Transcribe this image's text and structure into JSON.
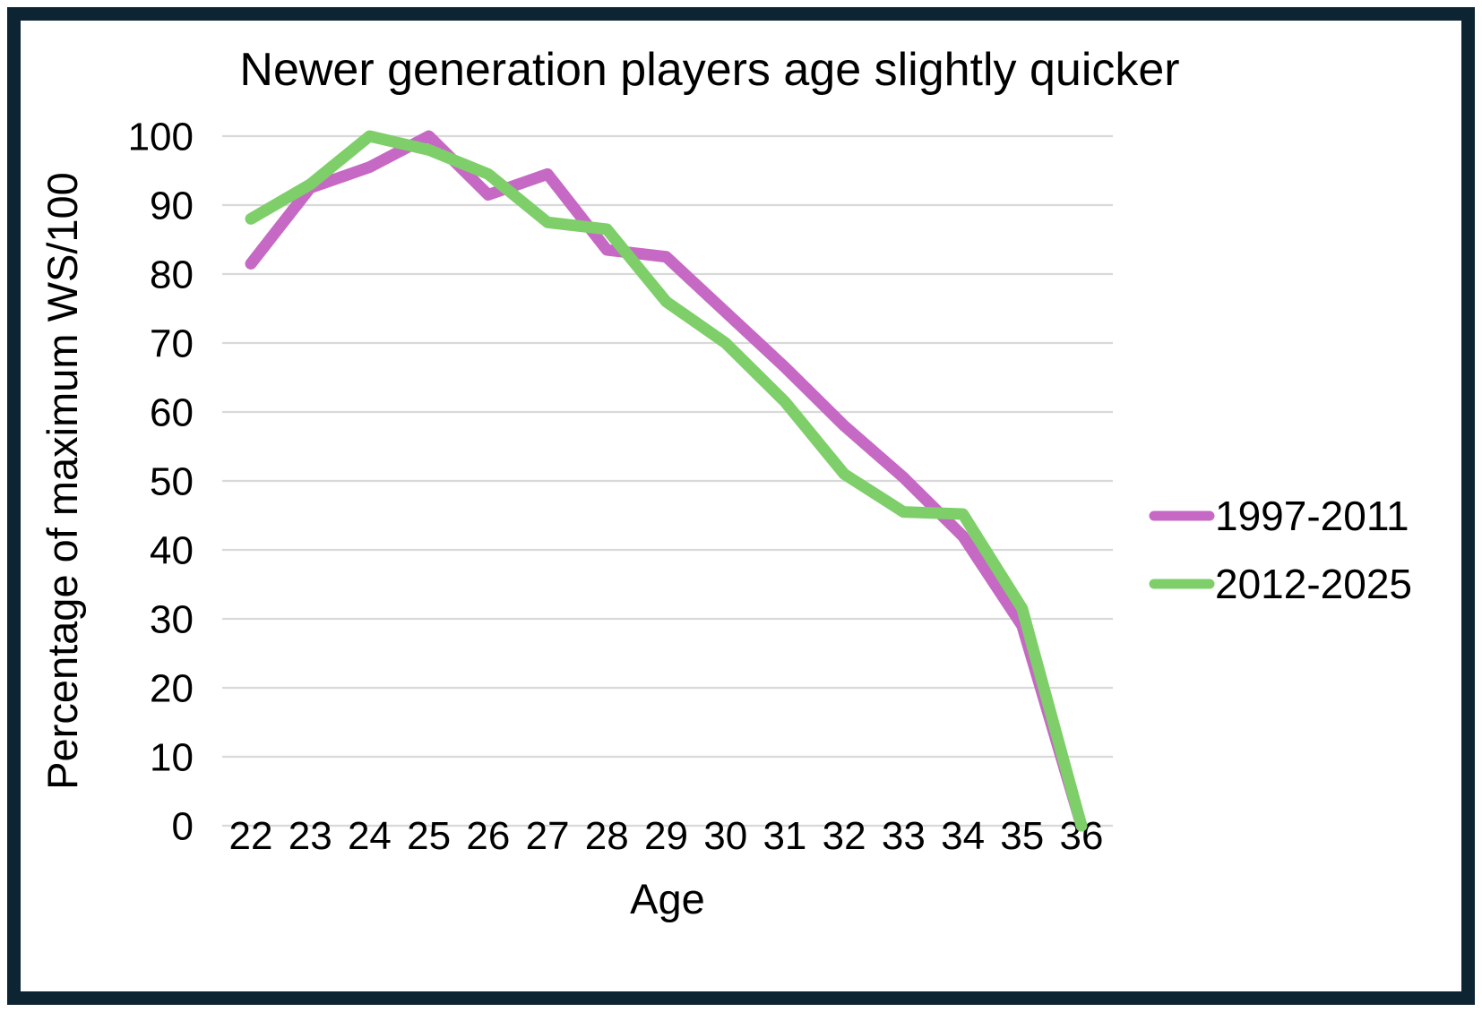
{
  "chart_data": {
    "type": "line",
    "title": "Newer generation players age slightly quicker",
    "xlabel": "Age",
    "ylabel": "Percentage of maximum WS/100",
    "x": [
      22,
      23,
      24,
      25,
      26,
      27,
      28,
      29,
      30,
      31,
      32,
      33,
      34,
      35,
      36
    ],
    "series": [
      {
        "name": "1997-2011",
        "color": "#c669c4",
        "values": [
          81.5,
          92.5,
          95.5,
          100,
          91.5,
          94.5,
          83.5,
          82.5,
          74.5,
          66.5,
          58,
          50.5,
          42,
          29,
          0
        ]
      },
      {
        "name": "2012-2025",
        "color": "#7ecf6a",
        "values": [
          88,
          93,
          100,
          98,
          94.5,
          87.5,
          86.5,
          76,
          70,
          61.5,
          51,
          45.5,
          45.2,
          31.5,
          0
        ]
      }
    ],
    "ylim": [
      0,
      100
    ],
    "yticks": [
      0,
      10,
      20,
      30,
      40,
      50,
      60,
      70,
      80,
      90,
      100
    ],
    "grid": true,
    "legend_position": "right",
    "gridline_color": "#d9d9d9",
    "frame_color": "#0d2433",
    "text_color": "#000000"
  }
}
